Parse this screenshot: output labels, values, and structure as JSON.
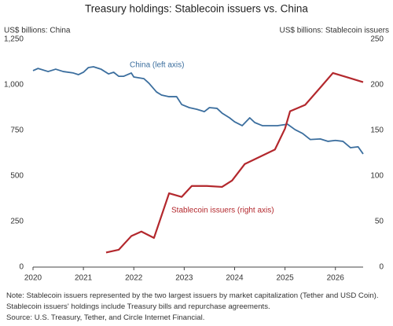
{
  "chart_data": {
    "type": "line",
    "title": "Treasury holdings: Stablecoin issuers vs. China",
    "y_label": "US$ billions: China",
    "y2_label": "US$ billions: Stablecoin issuers",
    "xlim": [
      2020,
      2026.55
    ],
    "xticks": [
      2020,
      2021,
      2022,
      2023,
      2024,
      2025,
      2026
    ],
    "ylim": [
      0,
      1250
    ],
    "yticks": [
      0,
      250,
      500,
      750,
      {
        "value": 1000,
        "label": "1,000"
      },
      {
        "value": 1250,
        "label": "1,250"
      }
    ],
    "y2lim": [
      0,
      250
    ],
    "y2ticks": [
      0,
      50,
      100,
      150,
      200,
      250
    ],
    "series": [
      {
        "name": "China (left axis)",
        "color": "#3b6e9e",
        "x": [
          2020.0,
          2020.1,
          2020.3,
          2020.45,
          2020.6,
          2020.8,
          2020.9,
          2021.0,
          2021.1,
          2021.2,
          2021.35,
          2021.5,
          2021.6,
          2021.7,
          2021.8,
          2021.95,
          2022.0,
          2022.2,
          2022.3,
          2022.45,
          2022.55,
          2022.7,
          2022.85,
          2022.95,
          2023.1,
          2023.25,
          2023.4,
          2023.5,
          2023.65,
          2023.75,
          2023.9,
          2024.0,
          2024.15,
          2024.3,
          2024.4,
          2024.55,
          2024.7,
          2024.85,
          2025.05,
          2025.2,
          2025.35,
          2025.5,
          2025.7,
          2025.85,
          2026.0,
          2026.15,
          2026.3,
          2026.45,
          2026.55
        ],
        "values": [
          1078,
          1090,
          1073,
          1086,
          1073,
          1065,
          1056,
          1069,
          1095,
          1099,
          1086,
          1060,
          1069,
          1047,
          1047,
          1065,
          1043,
          1034,
          1009,
          961,
          944,
          935,
          935,
          892,
          875,
          866,
          853,
          875,
          871,
          845,
          819,
          797,
          776,
          819,
          793,
          776,
          776,
          776,
          784,
          754,
          733,
          700,
          703,
          690,
          695,
          690,
          655,
          660,
          621
        ]
      },
      {
        "name": "Stablecoin issuers (right axis)",
        "color": "#b3282d",
        "axis": "y2",
        "x": [
          2021.45,
          2021.7,
          2021.95,
          2022.15,
          2022.4,
          2022.7,
          2022.95,
          2023.15,
          2023.45,
          2023.75,
          2023.95,
          2024.2,
          2024.5,
          2024.8,
          2025.0,
          2025.1,
          2025.4,
          2025.7,
          2025.95,
          2026.25,
          2026.55
        ],
        "values": [
          16,
          19,
          34,
          39,
          32,
          81,
          77,
          89,
          89,
          88,
          95,
          113,
          121,
          129,
          152,
          171,
          178,
          197,
          213,
          208,
          203
        ]
      }
    ],
    "note": "Note: Stablecoin issuers represented by the two largest issuers by market capitalization (Tether and USD Coin). Stablecoin issuers' holdings include Treasury bills and repurchase agreements.",
    "source": "Source: U.S. Treasury, Tether, and Circle Internet Financial."
  }
}
